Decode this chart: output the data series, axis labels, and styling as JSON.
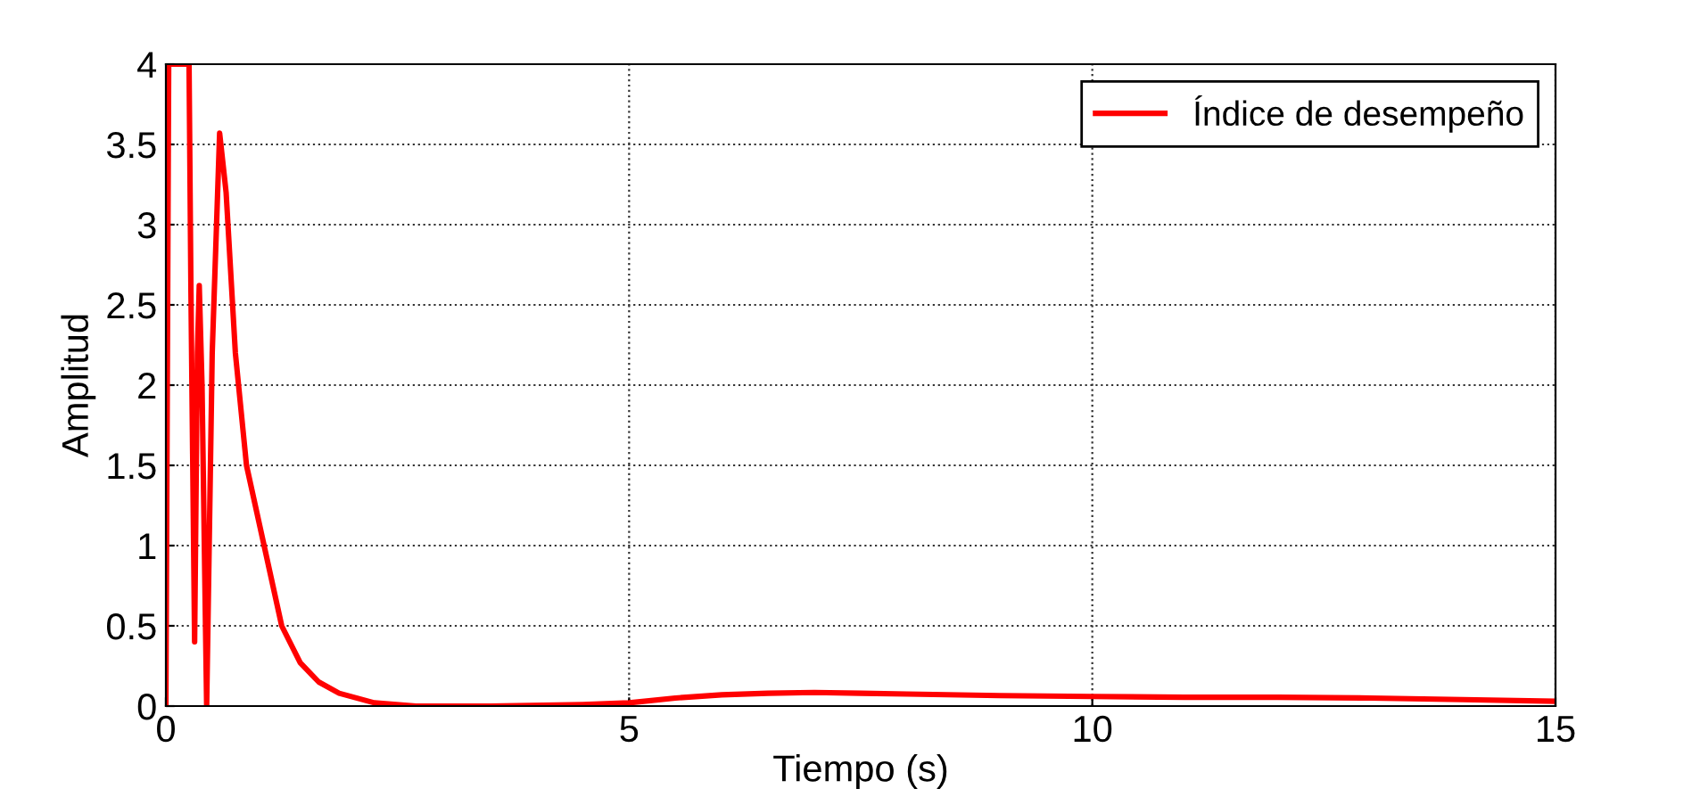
{
  "chart_data": {
    "type": "line",
    "xlabel": "Tiempo (s)",
    "ylabel": "Amplitud",
    "xlim": [
      0,
      15
    ],
    "xticks": [
      0,
      5,
      10,
      15
    ],
    "ylim": [
      0,
      4
    ],
    "yticks": [
      0,
      0.5,
      1,
      1.5,
      2,
      2.5,
      3,
      3.5,
      4
    ],
    "grid": true,
    "legend": "top right",
    "line_style": "solid",
    "marker": "none",
    "series": [
      {
        "name": "Índice de desempeño",
        "color": "#ff0000",
        "x": [
          0,
          0.03,
          0.25,
          0.27,
          0.31,
          0.34,
          0.36,
          0.39,
          0.44,
          0.5,
          0.58,
          0.65,
          0.75,
          0.87,
          1.06,
          1.25,
          1.45,
          1.65,
          1.87,
          2.25,
          2.7,
          3.5,
          4.5,
          5,
          5.5,
          6,
          6.5,
          7,
          7.5,
          8,
          9,
          10,
          11,
          12,
          13,
          14,
          15
        ],
        "values": [
          0,
          4,
          4,
          2.6,
          0.4,
          2.2,
          2.62,
          2.0,
          0,
          2.2,
          3.57,
          3.2,
          2.2,
          1.5,
          1.0,
          0.5,
          0.27,
          0.15,
          0.08,
          0.02,
          0.0,
          0.0,
          0.01,
          0.02,
          0.05,
          0.07,
          0.08,
          0.085,
          0.08,
          0.075,
          0.065,
          0.06,
          0.055,
          0.055,
          0.05,
          0.04,
          0.03
        ]
      }
    ]
  }
}
